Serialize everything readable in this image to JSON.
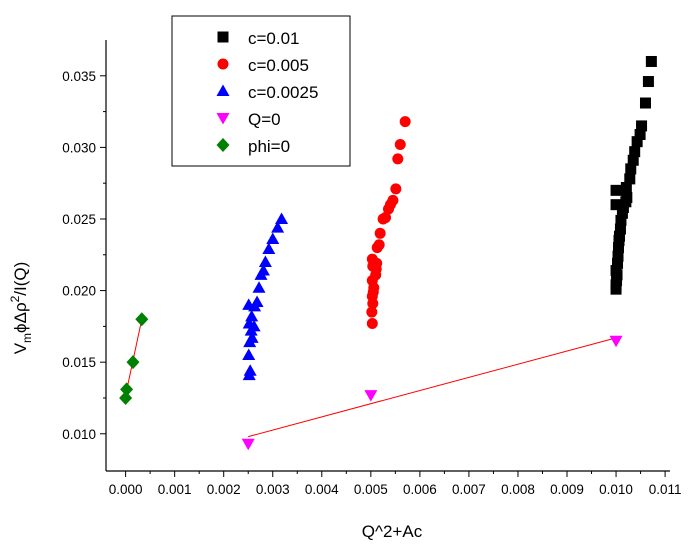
{
  "chart_data": {
    "type": "scatter",
    "title": "",
    "xlabel": "Q^2+Ac",
    "ylabel": "V_m ϕΔρ^2/I(Q)",
    "xlim": [
      -0.0004,
      0.0111
    ],
    "ylim": [
      0.0074,
      0.0375
    ],
    "xticks": [
      0.0,
      0.001,
      0.002,
      0.003,
      0.004,
      0.005,
      0.006,
      0.007,
      0.008,
      0.009,
      0.01,
      0.011
    ],
    "xtick_labels": [
      "0.000",
      "0.001",
      "0.002",
      "0.003",
      "0.004",
      "0.005",
      "0.006",
      "0.007",
      "0.008",
      "0.009",
      "0.010",
      "0.011"
    ],
    "yticks": [
      0.01,
      0.015,
      0.02,
      0.025,
      0.03,
      0.035
    ],
    "ytick_labels": [
      "0.010",
      "0.015",
      "0.020",
      "0.025",
      "0.030",
      "0.035"
    ],
    "grid": false,
    "legend_position": "top-left",
    "series": [
      {
        "name": "c=0.01",
        "marker": "square",
        "color": "#000000",
        "points": [
          [
            0.01,
            0.0201
          ],
          [
            0.01,
            0.0204
          ],
          [
            0.01001,
            0.0207
          ],
          [
            0.01002,
            0.0211
          ],
          [
            0.01,
            0.0214
          ],
          [
            0.01003,
            0.0219
          ],
          [
            0.01004,
            0.0224
          ],
          [
            0.01005,
            0.023
          ],
          [
            0.01006,
            0.0235
          ],
          [
            0.01007,
            0.0238
          ],
          [
            0.01009,
            0.0243
          ],
          [
            0.0101,
            0.0249
          ],
          [
            0.01013,
            0.0254
          ],
          [
            0.01015,
            0.0258
          ],
          [
            0.0102,
            0.0262
          ],
          [
            0.01,
            0.026
          ],
          [
            0.01022,
            0.0265
          ],
          [
            0.01,
            0.027
          ],
          [
            0.01021,
            0.0272
          ],
          [
            0.01028,
            0.0278
          ],
          [
            0.0103,
            0.0285
          ],
          [
            0.01035,
            0.0291
          ],
          [
            0.01038,
            0.0297
          ],
          [
            0.01043,
            0.0304
          ],
          [
            0.01049,
            0.0309
          ],
          [
            0.01052,
            0.0315
          ],
          [
            0.0106,
            0.0331
          ],
          [
            0.01066,
            0.0346
          ],
          [
            0.01072,
            0.036
          ]
        ]
      },
      {
        "name": "c=0.005",
        "marker": "circle",
        "color": "#ff0000",
        "points": [
          [
            0.00503,
            0.0177
          ],
          [
            0.00502,
            0.0185
          ],
          [
            0.00504,
            0.0191
          ],
          [
            0.00503,
            0.0196
          ],
          [
            0.00505,
            0.0199
          ],
          [
            0.00506,
            0.0202
          ],
          [
            0.00503,
            0.0207
          ],
          [
            0.0051,
            0.0211
          ],
          [
            0.00511,
            0.0215
          ],
          [
            0.00504,
            0.0217
          ],
          [
            0.00512,
            0.0219
          ],
          [
            0.00503,
            0.0222
          ],
          [
            0.00513,
            0.023
          ],
          [
            0.00517,
            0.0232
          ],
          [
            0.00519,
            0.024
          ],
          [
            0.00525,
            0.025
          ],
          [
            0.0053,
            0.0251
          ],
          [
            0.00536,
            0.0257
          ],
          [
            0.0054,
            0.026
          ],
          [
            0.00545,
            0.0263
          ],
          [
            0.00551,
            0.0271
          ],
          [
            0.00555,
            0.0292
          ],
          [
            0.0056,
            0.0302
          ],
          [
            0.0057,
            0.0318
          ]
        ]
      },
      {
        "name": "c=0.0025",
        "marker": "triangle-up",
        "color": "#0000ff",
        "points": [
          [
            0.00252,
            0.0141
          ],
          [
            0.00254,
            0.0144
          ],
          [
            0.00251,
            0.0155
          ],
          [
            0.00253,
            0.0164
          ],
          [
            0.00258,
            0.0167
          ],
          [
            0.00256,
            0.0172
          ],
          [
            0.00262,
            0.0175
          ],
          [
            0.00252,
            0.0177
          ],
          [
            0.00257,
            0.0182
          ],
          [
            0.00263,
            0.0189
          ],
          [
            0.00251,
            0.019
          ],
          [
            0.00268,
            0.0192
          ],
          [
            0.00272,
            0.0202
          ],
          [
            0.00276,
            0.0211
          ],
          [
            0.00281,
            0.0214
          ],
          [
            0.00285,
            0.022
          ],
          [
            0.00292,
            0.0229
          ],
          [
            0.003,
            0.0236
          ],
          [
            0.0031,
            0.0244
          ],
          [
            0.00318,
            0.025
          ]
        ]
      },
      {
        "name": "Q=0",
        "marker": "triangle-down",
        "color": "#ff00ff",
        "points": [
          [
            0.0025,
            0.0093
          ],
          [
            0.005,
            0.0127
          ],
          [
            0.01,
            0.0165
          ]
        ]
      },
      {
        "name": "phi=0",
        "marker": "diamond",
        "color": "#008000",
        "points": [
          [
            0.0,
            0.0125
          ],
          [
            2e-05,
            0.0131
          ],
          [
            0.00015,
            0.015
          ],
          [
            0.00033,
            0.018
          ]
        ]
      }
    ],
    "fit_lines": [
      {
        "color": "#ff0000",
        "from": [
          0.0025,
          0.0098
        ],
        "to": [
          0.01,
          0.0167
        ]
      },
      {
        "color": "#ff0000",
        "from": [
          0.0,
          0.0127
        ],
        "to": [
          0.00033,
          0.018
        ]
      }
    ]
  }
}
